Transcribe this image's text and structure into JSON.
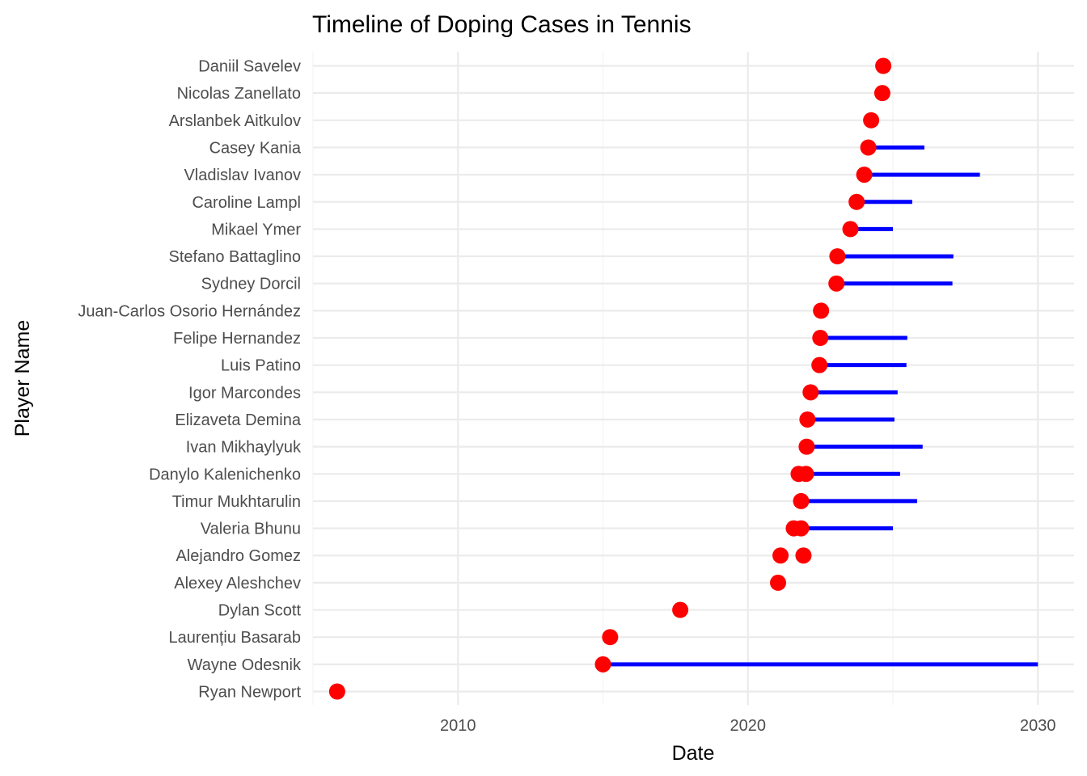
{
  "chart_data": {
    "type": "scatter",
    "title": "Timeline of Doping Cases in Tennis",
    "xlabel": "Date",
    "ylabel": "Player Name",
    "xlim": [
      "2005-01-01",
      "2031-04-01"
    ],
    "x_ticks": [
      "2010-01-01",
      "2020-01-01",
      "2030-01-01"
    ],
    "x_tick_labels": [
      "2010",
      "2020",
      "2030"
    ],
    "grid": true,
    "legend": "none",
    "colors": {
      "point": "#ff0000",
      "suspension": "#0000ff",
      "grid": "#ebebeb"
    },
    "categories": [
      "Daniil Savelev",
      "Nicolas Zanellato",
      "Arslanbek Aitkulov",
      "Casey Kania",
      "Vladislav Ivanov",
      "Caroline Lampl",
      "Mikael Ymer",
      "Stefano Battaglino",
      "Sydney Dorcil",
      "Juan-Carlos Osorio Hernández",
      "Felipe Hernandez",
      "Luis Patino",
      "Igor Marcondes",
      "Elizaveta Demina",
      "Ivan Mikhaylyuk",
      "Danylo Kalenichenko",
      "Timur Mukhtarulin",
      "Valeria Bhunu",
      "Alejandro Gomez",
      "Alexey Aleshchev",
      "Dylan Scott",
      "Laurențiu Basarab",
      "Wayne Odesnik",
      "Ryan Newport"
    ],
    "cases": [
      {
        "player": "Daniil Savelev",
        "points": [
          "2024-09-01"
        ],
        "suspension": null
      },
      {
        "player": "Nicolas Zanellato",
        "points": [
          "2024-08-20"
        ],
        "suspension": null
      },
      {
        "player": "Arslanbek Aitkulov",
        "points": [
          "2024-04-01"
        ],
        "suspension": null
      },
      {
        "player": "Casey Kania",
        "points": [
          "2024-02-25"
        ],
        "suspension": [
          "2024-02-25",
          "2026-02-01"
        ]
      },
      {
        "player": "Vladislav Ivanov",
        "points": [
          "2024-01-05"
        ],
        "suspension": [
          "2024-01-05",
          "2028-01-01"
        ]
      },
      {
        "player": "Caroline Lampl",
        "points": [
          "2023-10-01"
        ],
        "suspension": [
          "2023-10-01",
          "2025-09-01"
        ]
      },
      {
        "player": "Mikael Ymer",
        "points": [
          "2023-07-15"
        ],
        "suspension": [
          "2023-07-15",
          "2025-01-01"
        ]
      },
      {
        "player": "Stefano Battaglino",
        "points": [
          "2023-02-01"
        ],
        "suspension": [
          "2023-02-01",
          "2027-02-01"
        ]
      },
      {
        "player": "Sydney Dorcil",
        "points": [
          "2023-01-20"
        ],
        "suspension": [
          "2023-01-20",
          "2027-01-20"
        ]
      },
      {
        "player": "Juan-Carlos Osorio Hernández",
        "points": [
          "2022-07-10"
        ],
        "suspension": null
      },
      {
        "player": "Felipe Hernandez",
        "points": [
          "2022-07-01"
        ],
        "suspension": [
          "2022-07-01",
          "2025-07-01"
        ]
      },
      {
        "player": "Luis Patino",
        "points": [
          "2022-06-20"
        ],
        "suspension": [
          "2022-06-20",
          "2025-06-20"
        ]
      },
      {
        "player": "Igor Marcondes",
        "points": [
          "2022-03-01"
        ],
        "suspension": [
          "2022-03-01",
          "2025-03-01"
        ]
      },
      {
        "player": "Elizaveta Demina",
        "points": [
          "2022-01-20"
        ],
        "suspension": [
          "2022-01-20",
          "2025-01-20"
        ]
      },
      {
        "player": "Ivan Mikhaylyuk",
        "points": [
          "2022-01-10"
        ],
        "suspension": [
          "2022-01-10",
          "2026-01-10"
        ]
      },
      {
        "player": "Danylo Kalenichenko",
        "points": [
          "2021-10-01",
          "2022-01-01"
        ],
        "suspension": [
          "2021-10-01",
          "2025-04-01"
        ]
      },
      {
        "player": "Timur Mukhtarulin",
        "points": [
          "2021-11-01"
        ],
        "suspension": [
          "2021-11-01",
          "2025-11-01"
        ]
      },
      {
        "player": "Valeria Bhunu",
        "points": [
          "2021-08-01",
          "2021-11-01"
        ],
        "suspension": [
          "2021-11-01",
          "2025-01-01"
        ]
      },
      {
        "player": "Alejandro Gomez",
        "points": [
          "2021-02-15",
          "2021-12-01"
        ],
        "suspension": null
      },
      {
        "player": "Alexey Aleshchev",
        "points": [
          "2021-01-15"
        ],
        "suspension": null
      },
      {
        "player": "Dylan Scott",
        "points": [
          "2017-09-01"
        ],
        "suspension": null
      },
      {
        "player": "Laurențiu Basarab",
        "points": [
          "2015-04-01"
        ],
        "suspension": null
      },
      {
        "player": "Wayne Odesnik",
        "points": [
          "2015-01-01"
        ],
        "suspension": [
          "2015-01-01",
          "2030-01-01"
        ]
      },
      {
        "player": "Ryan Newport",
        "points": [
          "2005-11-01"
        ],
        "suspension": null
      }
    ]
  }
}
